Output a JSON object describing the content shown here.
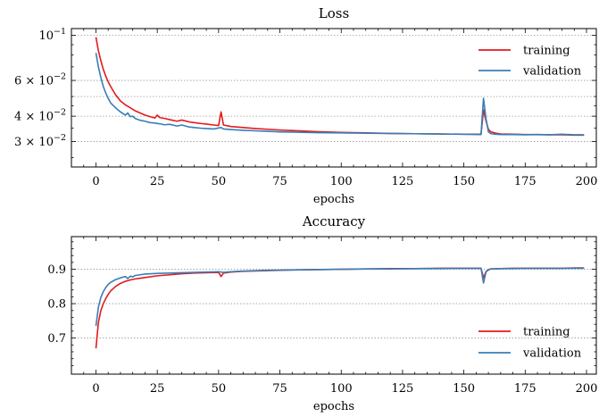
{
  "chart_data": [
    {
      "type": "line",
      "title": "Loss",
      "xlabel": "epochs",
      "ylabel": "",
      "yscale": "log",
      "xlim": [
        -10,
        204
      ],
      "ylim": [
        0.0225,
        0.108
      ],
      "grid": "horizontal dotted",
      "legend_position": "top-right",
      "x_ticks": [
        0,
        25,
        50,
        75,
        100,
        125,
        150,
        175,
        200
      ],
      "x_tick_labels": [
        "0",
        "25",
        "50",
        "75",
        "100",
        "125",
        "150",
        "175",
        "200"
      ],
      "y_ticks": [
        0.1,
        0.06,
        0.04,
        0.03
      ],
      "y_tick_labels": [
        {
          "mant": "10",
          "exp": "−1"
        },
        {
          "mant": "6 × 10",
          "exp": "−2"
        },
        {
          "mant": "4 × 10",
          "exp": "−2"
        },
        {
          "mant": "3 × 10",
          "exp": "−2"
        }
      ],
      "y_grid": [
        0.1,
        0.06,
        0.05,
        0.04,
        0.03
      ],
      "series": [
        {
          "name": "training",
          "color": "#e41a1c",
          "x": [
            0,
            1,
            2,
            3,
            4,
            5,
            6,
            8,
            10,
            12,
            14,
            16,
            18,
            20,
            22,
            24,
            25,
            26,
            28,
            30,
            33,
            35,
            38,
            40,
            43,
            45,
            48,
            50,
            51,
            52,
            55,
            60,
            65,
            70,
            75,
            80,
            90,
            100,
            110,
            120,
            130,
            140,
            150,
            157,
            158,
            159,
            160,
            161,
            163,
            165,
            170,
            175,
            180,
            185,
            190,
            195,
            199
          ],
          "y": [
            0.098,
            0.084,
            0.075,
            0.068,
            0.063,
            0.059,
            0.056,
            0.051,
            0.0475,
            0.0455,
            0.044,
            0.0425,
            0.0415,
            0.0405,
            0.0398,
            0.0392,
            0.0405,
            0.0394,
            0.039,
            0.0385,
            0.0378,
            0.0383,
            0.0375,
            0.0372,
            0.0368,
            0.0366,
            0.0362,
            0.036,
            0.042,
            0.0362,
            0.0356,
            0.0352,
            0.0348,
            0.0345,
            0.0342,
            0.034,
            0.0336,
            0.0333,
            0.0331,
            0.0329,
            0.0328,
            0.0327,
            0.0326,
            0.0326,
            0.043,
            0.038,
            0.0345,
            0.0335,
            0.033,
            0.0327,
            0.0326,
            0.0325,
            0.0325,
            0.0324,
            0.0324,
            0.0323,
            0.0323
          ]
        },
        {
          "name": "validation",
          "color": "#377eb8",
          "x": [
            0,
            1,
            2,
            3,
            4,
            5,
            6,
            8,
            10,
            12,
            13,
            14,
            15,
            16,
            18,
            20,
            22,
            24,
            26,
            28,
            30,
            33,
            35,
            38,
            40,
            43,
            45,
            48,
            50,
            51,
            52,
            55,
            60,
            65,
            70,
            75,
            80,
            90,
            100,
            110,
            120,
            130,
            140,
            150,
            157,
            158,
            159,
            160,
            161,
            163,
            165,
            170,
            175,
            180,
            185,
            190,
            195,
            199
          ],
          "y": [
            0.082,
            0.07,
            0.062,
            0.056,
            0.052,
            0.049,
            0.0465,
            0.044,
            0.042,
            0.0405,
            0.0415,
            0.0398,
            0.04,
            0.039,
            0.0382,
            0.0378,
            0.0372,
            0.037,
            0.0367,
            0.0363,
            0.0365,
            0.0358,
            0.0362,
            0.0354,
            0.0352,
            0.0349,
            0.0348,
            0.0346,
            0.035,
            0.0352,
            0.0346,
            0.0344,
            0.0341,
            0.0339,
            0.0337,
            0.0335,
            0.0334,
            0.0332,
            0.0331,
            0.033,
            0.0329,
            0.0328,
            0.0327,
            0.0326,
            0.0325,
            0.049,
            0.039,
            0.0335,
            0.0328,
            0.0326,
            0.0325,
            0.0325,
            0.0324,
            0.0325,
            0.0324,
            0.0326,
            0.0324,
            0.0324
          ]
        }
      ]
    },
    {
      "type": "line",
      "title": "Accuracy",
      "xlabel": "epochs",
      "ylabel": "",
      "xlim": [
        -10,
        204
      ],
      "ylim": [
        0.595,
        0.995
      ],
      "grid": "horizontal dotted",
      "legend_position": "bottom-right",
      "x_ticks": [
        0,
        25,
        50,
        75,
        100,
        125,
        150,
        175,
        200
      ],
      "x_tick_labels": [
        "0",
        "25",
        "50",
        "75",
        "100",
        "125",
        "150",
        "175",
        "200"
      ],
      "y_ticks": [
        0.9,
        0.8,
        0.7
      ],
      "y_tick_labels": [
        "0.9",
        "0.8",
        "0.7"
      ],
      "y_grid": [
        0.9,
        0.8,
        0.7
      ],
      "series": [
        {
          "name": "training",
          "color": "#e41a1c",
          "x": [
            0,
            1,
            2,
            3,
            4,
            5,
            6,
            8,
            10,
            12,
            14,
            16,
            18,
            20,
            25,
            30,
            35,
            40,
            45,
            50,
            51,
            52,
            55,
            60,
            70,
            80,
            90,
            100,
            110,
            120,
            130,
            140,
            150,
            157,
            158,
            159,
            160,
            161,
            165,
            170,
            175,
            180,
            185,
            190,
            195,
            199
          ],
          "y": [
            0.67,
            0.745,
            0.78,
            0.8,
            0.815,
            0.827,
            0.837,
            0.85,
            0.859,
            0.865,
            0.869,
            0.872,
            0.874,
            0.876,
            0.881,
            0.884,
            0.887,
            0.889,
            0.89,
            0.891,
            0.879,
            0.889,
            0.892,
            0.894,
            0.896,
            0.898,
            0.899,
            0.9,
            0.901,
            0.902,
            0.902,
            0.903,
            0.903,
            0.903,
            0.875,
            0.893,
            0.899,
            0.901,
            0.902,
            0.903,
            0.903,
            0.903,
            0.903,
            0.903,
            0.904,
            0.904
          ]
        },
        {
          "name": "validation",
          "color": "#377eb8",
          "x": [
            0,
            1,
            2,
            3,
            4,
            5,
            6,
            8,
            10,
            12,
            13,
            14,
            15,
            16,
            18,
            20,
            25,
            30,
            35,
            40,
            45,
            50,
            51,
            52,
            55,
            60,
            70,
            80,
            90,
            100,
            110,
            120,
            130,
            140,
            150,
            157,
            158,
            159,
            160,
            161,
            165,
            170,
            175,
            180,
            185,
            190,
            195,
            199
          ],
          "y": [
            0.735,
            0.79,
            0.818,
            0.835,
            0.847,
            0.856,
            0.862,
            0.87,
            0.875,
            0.879,
            0.873,
            0.88,
            0.878,
            0.882,
            0.884,
            0.886,
            0.888,
            0.889,
            0.89,
            0.891,
            0.892,
            0.893,
            0.892,
            0.891,
            0.893,
            0.895,
            0.897,
            0.898,
            0.899,
            0.9,
            0.901,
            0.901,
            0.902,
            0.902,
            0.903,
            0.903,
            0.86,
            0.892,
            0.898,
            0.901,
            0.902,
            0.902,
            0.903,
            0.903,
            0.903,
            0.903,
            0.903,
            0.903
          ]
        }
      ]
    }
  ]
}
